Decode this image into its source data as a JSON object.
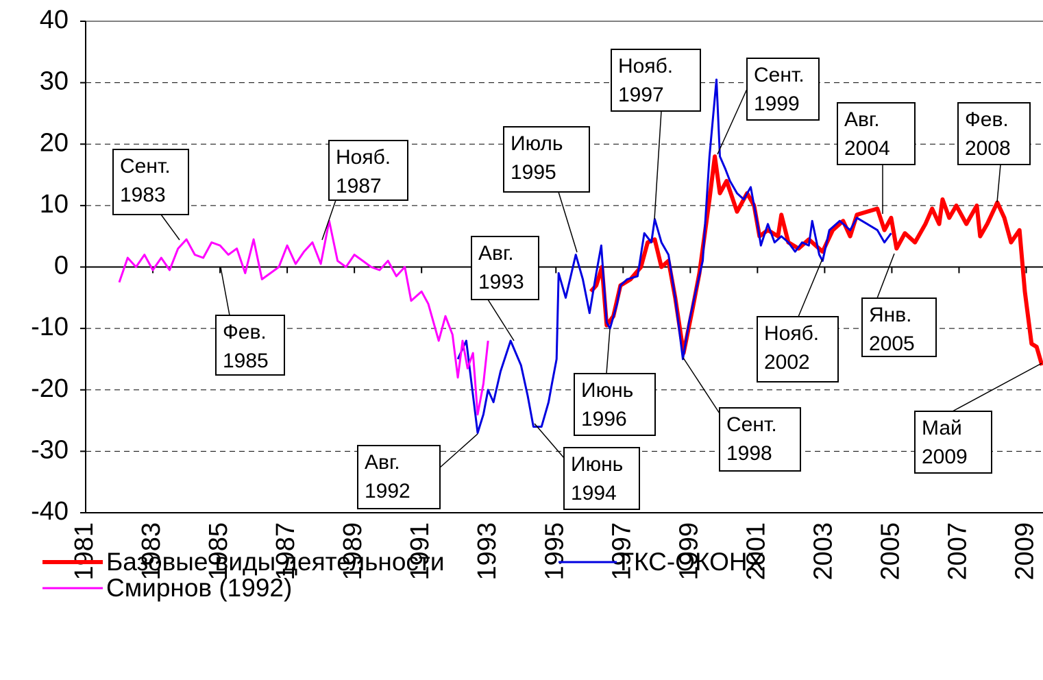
{
  "chart_data": {
    "type": "line",
    "series": [
      {
        "name": "Базовые виды деятельности",
        "color": "#ff0000",
        "width": 6,
        "x": [
          1996.04,
          1996.2,
          1996.37,
          1996.51,
          1996.71,
          1996.92,
          1997.22,
          1997.53,
          1997.73,
          1997.94,
          1998.14,
          1998.35,
          1998.55,
          1998.8,
          1999.06,
          1999.27,
          1999.57,
          1999.73,
          1999.88,
          2000.08,
          2000.39,
          2000.69,
          2000.9,
          2001.06,
          2001.31,
          2001.61,
          2001.71,
          2001.92,
          2002.22,
          2002.53,
          2002.94,
          2003.24,
          2003.55,
          2003.76,
          2003.96,
          2004.27,
          2004.57,
          2004.78,
          2004.98,
          2005.14,
          2005.39,
          2005.69,
          2006.0,
          2006.2,
          2006.41,
          2006.51,
          2006.71,
          2006.92,
          2007.22,
          2007.53,
          2007.63,
          2007.84,
          2008.14,
          2008.35,
          2008.55,
          2008.8,
          2008.96,
          2009.16,
          2009.31,
          2009.47
        ],
        "values": [
          -4,
          -3,
          0,
          -9.5,
          -8,
          -3,
          -2,
          0,
          4,
          4.5,
          0,
          1,
          -5,
          -14,
          -7,
          -1,
          11,
          18,
          12,
          14,
          9,
          12,
          10,
          5,
          6,
          5,
          8.5,
          4,
          3,
          4.5,
          2.5,
          6,
          7.5,
          5,
          8.5,
          9,
          9.5,
          6,
          8,
          3,
          5.5,
          4,
          7,
          9.5,
          7,
          11,
          8,
          10,
          7,
          10,
          5,
          7,
          10.5,
          8,
          4,
          6,
          -4,
          -12.5,
          -13,
          -16
        ]
      },
      {
        "name": "ГКС-ОКОНХ",
        "color": "#0000e0",
        "width": 3,
        "x": [
          1992.08,
          1992.33,
          1992.67,
          1992.84,
          1992.98,
          1993.14,
          1993.35,
          1993.65,
          1993.96,
          1994.16,
          1994.33,
          1994.57,
          1994.78,
          1994.88,
          1995.02,
          1995.08,
          1995.29,
          1995.59,
          1995.8,
          1996.0,
          1996.2,
          1996.35,
          1996.51,
          1996.61,
          1996.82,
          1996.92,
          1997.12,
          1997.43,
          1997.63,
          1997.84,
          1997.94,
          1998.14,
          1998.35,
          1998.55,
          1998.78,
          1998.96,
          1999.16,
          1999.37,
          1999.57,
          1999.78,
          1999.88,
          2000.04,
          2000.18,
          2000.39,
          2000.59,
          2000.8,
          2000.9,
          2001.0,
          2001.1,
          2001.31,
          2001.51,
          2001.71,
          2001.92,
          2002.12,
          2002.33,
          2002.53,
          2002.63,
          2002.84,
          2002.94,
          2003.14,
          2003.45,
          2003.76,
          2003.96,
          2004.27,
          2004.57,
          2004.78,
          2004.98
        ],
        "values": [
          -15,
          -12,
          -27,
          -24,
          -20,
          -22,
          -17,
          -12,
          -16,
          -21,
          -26,
          -26,
          -22,
          -19,
          -15,
          -1,
          -5,
          2,
          -2,
          -7.5,
          -1,
          3.5,
          -9,
          -10,
          -6,
          -3,
          -2,
          -1.5,
          5.5,
          4,
          7.8,
          4,
          2,
          -5,
          -15,
          -9,
          -4,
          1,
          18,
          30.5,
          18,
          16,
          14,
          12,
          11,
          13,
          10,
          7,
          3.5,
          7,
          4,
          5,
          4,
          2.5,
          4,
          3.5,
          7.5,
          2,
          1,
          6,
          7.5,
          6,
          8,
          7,
          6,
          4,
          5.5
        ]
      },
      {
        "name": "Смирнов (1992)",
        "color": "#ff00ff",
        "width": 3,
        "x": [
          1982,
          1982.25,
          1982.5,
          1982.75,
          1983,
          1983.25,
          1983.5,
          1983.75,
          1984,
          1984.25,
          1984.5,
          1984.75,
          1985,
          1985.25,
          1985.5,
          1985.75,
          1986,
          1986.25,
          1986.5,
          1986.75,
          1987,
          1987.25,
          1987.5,
          1987.75,
          1988,
          1988.25,
          1988.5,
          1988.75,
          1989,
          1989.25,
          1989.5,
          1989.75,
          1990,
          1990.25,
          1990.5,
          1990.69,
          1991,
          1991.2,
          1991.51,
          1991.71,
          1991.92,
          1992.08,
          1992.22,
          1992.37,
          1992.53,
          1992.67,
          1992.84,
          1992.98
        ],
        "values": [
          -2.5,
          1.5,
          0,
          2,
          -0.5,
          1.5,
          -0.5,
          3,
          4.5,
          2,
          1.5,
          4,
          3.5,
          2,
          3,
          -1,
          4.5,
          -2,
          -1,
          0,
          3.5,
          0.5,
          2.5,
          4,
          0.5,
          7.5,
          1,
          0,
          2,
          1,
          0,
          -0.5,
          1,
          -1.5,
          0,
          -5.5,
          -4,
          -6,
          -12,
          -8,
          -11,
          -18,
          -12,
          -16.5,
          -14,
          -24,
          -19,
          -12
        ]
      }
    ],
    "xlim": [
      1981,
      2009.5
    ],
    "xticks": [
      1981,
      1983,
      1985,
      1987,
      1989,
      1991,
      1993,
      1995,
      1997,
      1999,
      2001,
      2003,
      2005,
      2007,
      2009
    ],
    "ylim": [
      -40,
      40
    ],
    "yticks": [
      -40,
      -30,
      -20,
      -10,
      0,
      10,
      20,
      30,
      40
    ],
    "grid": true,
    "annotations": [
      {
        "lines": [
          "Сент.",
          "1983"
        ]
      },
      {
        "lines": [
          "Фев.",
          "1985"
        ]
      },
      {
        "lines": [
          "Нояб.",
          "1987"
        ]
      },
      {
        "lines": [
          "Авг.",
          "1992"
        ]
      },
      {
        "lines": [
          "Авг.",
          "1993"
        ]
      },
      {
        "lines": [
          "Июль",
          "1995"
        ]
      },
      {
        "lines": [
          "Июнь",
          "1994"
        ]
      },
      {
        "lines": [
          "Июнь",
          "1996"
        ]
      },
      {
        "lines": [
          "Нояб.",
          "1997"
        ]
      },
      {
        "lines": [
          "Сент.",
          "1999"
        ]
      },
      {
        "lines": [
          "Сент.",
          "1998"
        ]
      },
      {
        "lines": [
          "Нояб.",
          "2002"
        ]
      },
      {
        "lines": [
          "Авг.",
          "2004"
        ]
      },
      {
        "lines": [
          "Янв.",
          "2005"
        ]
      },
      {
        "lines": [
          "Фев.",
          "2008"
        ]
      },
      {
        "lines": [
          "Май",
          "2009"
        ]
      }
    ]
  }
}
